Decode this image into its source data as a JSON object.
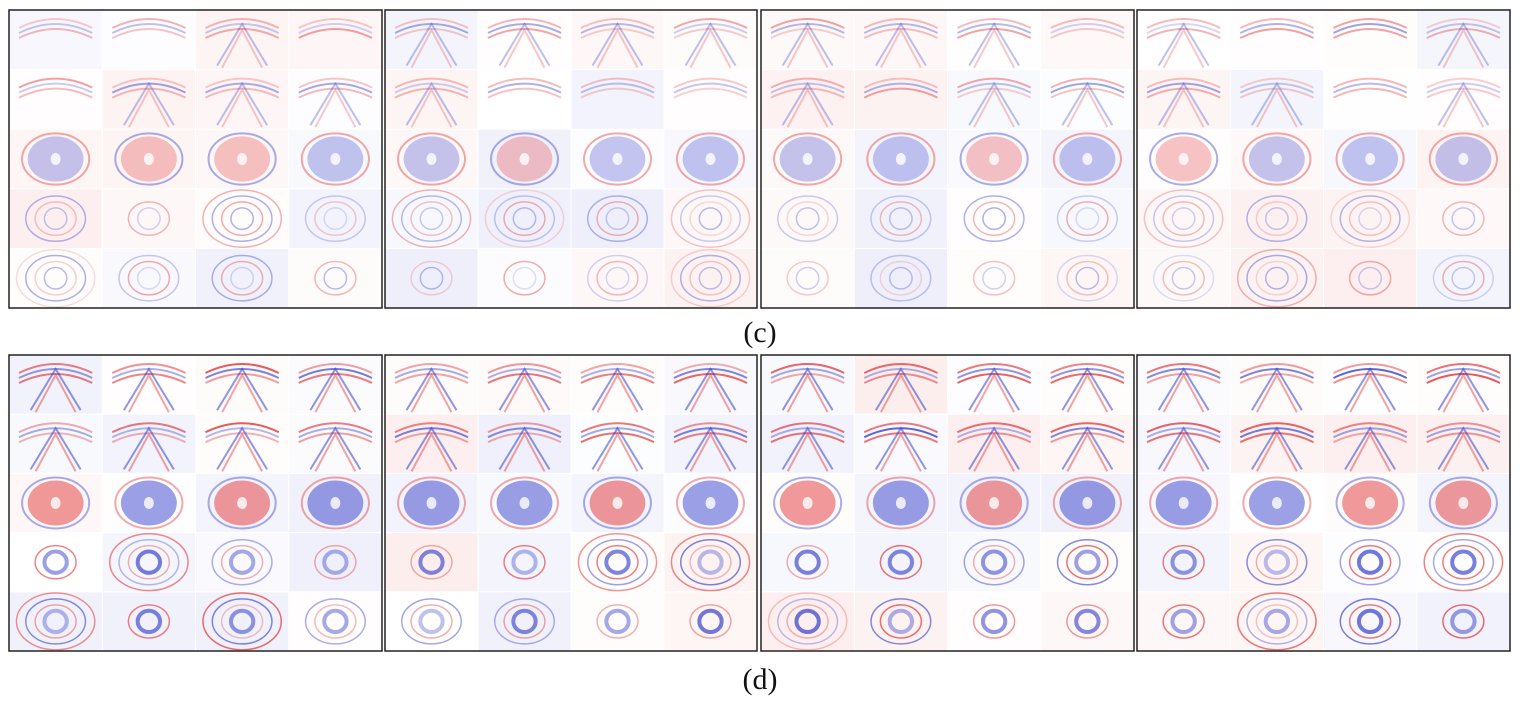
{
  "figure": {
    "panel_labels": [
      "(c)",
      "(d)"
    ]
  }
}
